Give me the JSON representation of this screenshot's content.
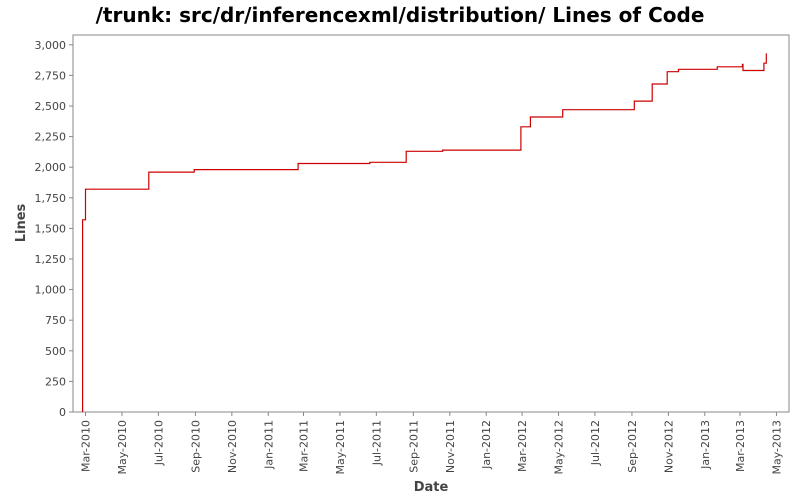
{
  "chart_data": {
    "type": "line",
    "title": "/trunk: src/dr/inferencexml/distribution/ Lines of Code",
    "xlabel": "Date",
    "ylabel": "Lines",
    "x_range": [
      "2010-02-08",
      "2013-05-22"
    ],
    "ylim": [
      0,
      3080
    ],
    "grid": false,
    "legend": "none",
    "line_color": "#cc0000",
    "y_ticks": [
      {
        "value": 0,
        "label": "0"
      },
      {
        "value": 250,
        "label": "250"
      },
      {
        "value": 500,
        "label": "500"
      },
      {
        "value": 750,
        "label": "750"
      },
      {
        "value": 1000,
        "label": "1,000"
      },
      {
        "value": 1250,
        "label": "1,250"
      },
      {
        "value": 1500,
        "label": "1,500"
      },
      {
        "value": 1750,
        "label": "1,750"
      },
      {
        "value": 2000,
        "label": "2,000"
      },
      {
        "value": 2250,
        "label": "2,250"
      },
      {
        "value": 2500,
        "label": "2,500"
      },
      {
        "value": 2750,
        "label": "2,750"
      },
      {
        "value": 3000,
        "label": "3,000"
      }
    ],
    "x_ticks": [
      {
        "date": "2010-03-01",
        "label": "Mar-2010"
      },
      {
        "date": "2010-05-01",
        "label": "May-2010"
      },
      {
        "date": "2010-07-01",
        "label": "Jul-2010"
      },
      {
        "date": "2010-09-01",
        "label": "Sep-2010"
      },
      {
        "date": "2010-11-01",
        "label": "Nov-2010"
      },
      {
        "date": "2011-01-01",
        "label": "Jan-2011"
      },
      {
        "date": "2011-03-01",
        "label": "Mar-2011"
      },
      {
        "date": "2011-05-01",
        "label": "May-2011"
      },
      {
        "date": "2011-07-01",
        "label": "Jul-2011"
      },
      {
        "date": "2011-09-01",
        "label": "Sep-2011"
      },
      {
        "date": "2011-11-01",
        "label": "Nov-2011"
      },
      {
        "date": "2012-01-01",
        "label": "Jan-2012"
      },
      {
        "date": "2012-03-01",
        "label": "Mar-2012"
      },
      {
        "date": "2012-05-01",
        "label": "May-2012"
      },
      {
        "date": "2012-07-01",
        "label": "Jul-2012"
      },
      {
        "date": "2012-09-01",
        "label": "Sep-2012"
      },
      {
        "date": "2012-11-01",
        "label": "Nov-2012"
      },
      {
        "date": "2013-01-01",
        "label": "Jan-2013"
      },
      {
        "date": "2013-03-01",
        "label": "Mar-2013"
      },
      {
        "date": "2013-05-01",
        "label": "May-2013"
      }
    ],
    "series": [
      {
        "points": [
          {
            "x": "2010-02-24",
            "y": 0
          },
          {
            "x": "2010-02-24",
            "y": 1570
          },
          {
            "x": "2010-03-01",
            "y": 1570
          },
          {
            "x": "2010-03-01",
            "y": 1820
          },
          {
            "x": "2010-06-15",
            "y": 1820
          },
          {
            "x": "2010-06-15",
            "y": 1960
          },
          {
            "x": "2010-08-30",
            "y": 1960
          },
          {
            "x": "2010-08-30",
            "y": 1980
          },
          {
            "x": "2011-02-20",
            "y": 1980
          },
          {
            "x": "2011-02-20",
            "y": 2030
          },
          {
            "x": "2011-06-20",
            "y": 2030
          },
          {
            "x": "2011-06-20",
            "y": 2040
          },
          {
            "x": "2011-08-20",
            "y": 2040
          },
          {
            "x": "2011-08-20",
            "y": 2130
          },
          {
            "x": "2011-10-20",
            "y": 2130
          },
          {
            "x": "2011-10-20",
            "y": 2140
          },
          {
            "x": "2012-02-28",
            "y": 2140
          },
          {
            "x": "2012-02-28",
            "y": 2330
          },
          {
            "x": "2012-03-15",
            "y": 2330
          },
          {
            "x": "2012-03-15",
            "y": 2410
          },
          {
            "x": "2012-05-08",
            "y": 2410
          },
          {
            "x": "2012-05-08",
            "y": 2470
          },
          {
            "x": "2012-09-05",
            "y": 2470
          },
          {
            "x": "2012-09-05",
            "y": 2540
          },
          {
            "x": "2012-10-05",
            "y": 2540
          },
          {
            "x": "2012-10-05",
            "y": 2680
          },
          {
            "x": "2012-10-30",
            "y": 2680
          },
          {
            "x": "2012-10-30",
            "y": 2780
          },
          {
            "x": "2012-11-18",
            "y": 2780
          },
          {
            "x": "2012-11-18",
            "y": 2800
          },
          {
            "x": "2013-01-22",
            "y": 2800
          },
          {
            "x": "2013-01-22",
            "y": 2820
          },
          {
            "x": "2013-03-05",
            "y": 2820
          },
          {
            "x": "2013-03-05",
            "y": 2840
          },
          {
            "x": "2013-03-06",
            "y": 2840
          },
          {
            "x": "2013-03-06",
            "y": 2790
          },
          {
            "x": "2013-04-10",
            "y": 2790
          },
          {
            "x": "2013-04-10",
            "y": 2850
          },
          {
            "x": "2013-04-14",
            "y": 2850
          },
          {
            "x": "2013-04-14",
            "y": 2930
          }
        ]
      }
    ]
  }
}
